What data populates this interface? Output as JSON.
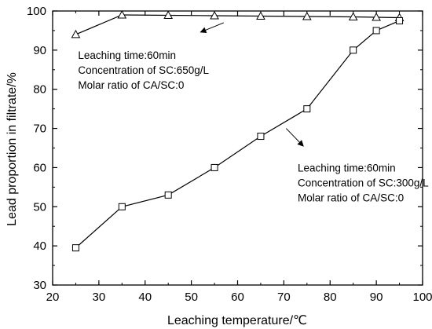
{
  "chart_data": {
    "type": "line",
    "xlabel": "Leaching temperature/℃",
    "ylabel": "Lead proportion in filtrate/%",
    "xlim": [
      20,
      100
    ],
    "ylim": [
      30,
      100
    ],
    "xticks": [
      20,
      30,
      40,
      50,
      60,
      70,
      80,
      90,
      100
    ],
    "yticks": [
      30,
      40,
      50,
      60,
      70,
      80,
      90,
      100
    ],
    "grid": false,
    "series": [
      {
        "marker": "triangle",
        "x": [
          25,
          35,
          45,
          55,
          65,
          75,
          85,
          90,
          95
        ],
        "y": [
          94,
          99,
          98.9,
          98.8,
          98.7,
          98.6,
          98.5,
          98.4,
          98.3
        ]
      },
      {
        "marker": "square",
        "x": [
          25,
          35,
          45,
          55,
          65,
          75,
          85,
          90,
          95
        ],
        "y": [
          39.5,
          50,
          53,
          60,
          68,
          75,
          90,
          95,
          97.5
        ]
      }
    ],
    "annotations": [
      {
        "lines": [
          "Leaching time:60min",
          "Concentration of SC:650g/L",
          "Molar ratio of CA/SC:0"
        ],
        "x": 25.5,
        "y": 87.8,
        "arrow_from": [
          57,
          97
        ],
        "arrow_to": [
          52,
          94.6
        ]
      },
      {
        "lines": [
          "Leaching time:60min",
          "Concentration of SC:300g/L",
          "Molar ratio of CA/SC:0"
        ],
        "x": 73,
        "y": 59,
        "arrow_from": [
          70.5,
          70
        ],
        "arrow_to": [
          74.2,
          65.5
        ]
      }
    ]
  }
}
